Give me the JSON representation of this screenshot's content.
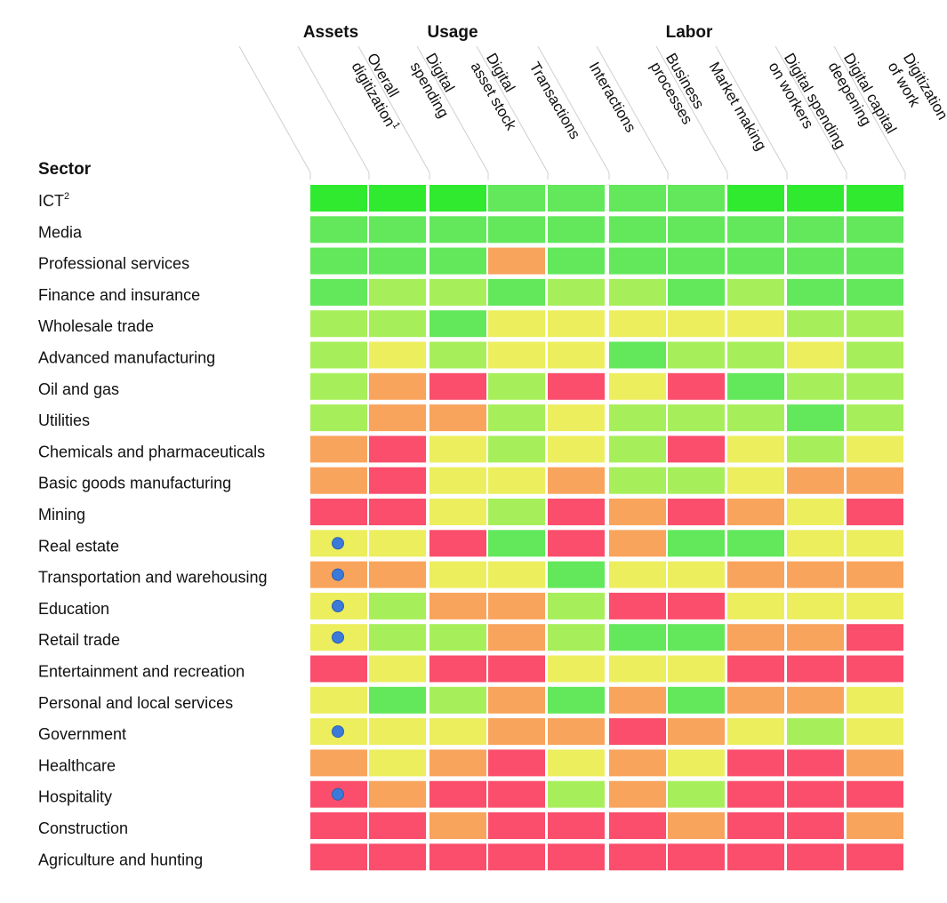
{
  "colors": {
    "dark_green": "#2fea2f",
    "green": "#62e85a",
    "light_green": "#a7ef5a",
    "yellow": "#ecee5e",
    "orange": "#f9a45c",
    "red": "#fa4e6c",
    "dot": "#3b7ad9",
    "separator": "#cfcfcf"
  },
  "chart_data": {
    "type": "heatmap",
    "row_header": "Sector",
    "groups": [
      {
        "label": "Assets",
        "columns": [
          0,
          1
        ]
      },
      {
        "label": "Usage",
        "columns": [
          2,
          3,
          4,
          5,
          6
        ]
      },
      {
        "label": "Labor",
        "columns": [
          7,
          8,
          9
        ]
      }
    ],
    "columns": [
      {
        "lines": [
          "Overall",
          "digitization"
        ],
        "sup": "1"
      },
      {
        "lines": [
          "Digital",
          "spending"
        ],
        "sup": ""
      },
      {
        "lines": [
          "Digital",
          "asset stock"
        ],
        "sup": ""
      },
      {
        "lines": [
          "Transactions"
        ],
        "sup": ""
      },
      {
        "lines": [
          "Interactions"
        ],
        "sup": ""
      },
      {
        "lines": [
          "Business",
          "processes"
        ],
        "sup": ""
      },
      {
        "lines": [
          "Market making"
        ],
        "sup": ""
      },
      {
        "lines": [
          "Digital spending",
          "on workers"
        ],
        "sup": ""
      },
      {
        "lines": [
          "Digital capital",
          "deepening"
        ],
        "sup": ""
      },
      {
        "lines": [
          "Digitization",
          "of work"
        ],
        "sup": ""
      }
    ],
    "rows": [
      {
        "label": "ICT",
        "sup": "2",
        "dot": false,
        "cells": [
          "dark_green",
          "dark_green",
          "dark_green",
          "green",
          "green",
          "green",
          "green",
          "dark_green",
          "dark_green",
          "dark_green"
        ]
      },
      {
        "label": "Media",
        "sup": "",
        "dot": false,
        "cells": [
          "green",
          "green",
          "green",
          "green",
          "green",
          "green",
          "green",
          "green",
          "green",
          "green"
        ]
      },
      {
        "label": "Professional services",
        "sup": "",
        "dot": false,
        "cells": [
          "green",
          "green",
          "green",
          "orange",
          "green",
          "green",
          "green",
          "green",
          "green",
          "green"
        ]
      },
      {
        "label": "Finance and insurance",
        "sup": "",
        "dot": false,
        "cells": [
          "green",
          "light_green",
          "light_green",
          "green",
          "light_green",
          "light_green",
          "green",
          "light_green",
          "green",
          "green"
        ]
      },
      {
        "label": "Wholesale trade",
        "sup": "",
        "dot": false,
        "cells": [
          "light_green",
          "light_green",
          "green",
          "yellow",
          "yellow",
          "yellow",
          "yellow",
          "yellow",
          "light_green",
          "light_green"
        ]
      },
      {
        "label": "Advanced manufacturing",
        "sup": "",
        "dot": false,
        "cells": [
          "light_green",
          "yellow",
          "light_green",
          "yellow",
          "yellow",
          "green",
          "light_green",
          "light_green",
          "yellow",
          "light_green"
        ]
      },
      {
        "label": "Oil and gas",
        "sup": "",
        "dot": false,
        "cells": [
          "light_green",
          "orange",
          "red",
          "light_green",
          "red",
          "yellow",
          "red",
          "green",
          "light_green",
          "light_green"
        ]
      },
      {
        "label": "Utilities",
        "sup": "",
        "dot": false,
        "cells": [
          "light_green",
          "orange",
          "orange",
          "light_green",
          "yellow",
          "light_green",
          "light_green",
          "light_green",
          "green",
          "light_green"
        ]
      },
      {
        "label": "Chemicals and pharmaceuticals",
        "sup": "",
        "dot": false,
        "cells": [
          "orange",
          "red",
          "yellow",
          "light_green",
          "yellow",
          "light_green",
          "red",
          "yellow",
          "light_green",
          "yellow"
        ]
      },
      {
        "label": "Basic goods manufacturing",
        "sup": "",
        "dot": false,
        "cells": [
          "orange",
          "red",
          "yellow",
          "yellow",
          "orange",
          "light_green",
          "light_green",
          "yellow",
          "orange",
          "orange"
        ]
      },
      {
        "label": "Mining",
        "sup": "",
        "dot": false,
        "cells": [
          "red",
          "red",
          "yellow",
          "light_green",
          "red",
          "orange",
          "red",
          "orange",
          "yellow",
          "red"
        ]
      },
      {
        "label": "Real estate",
        "sup": "",
        "dot": true,
        "cells": [
          "yellow",
          "yellow",
          "red",
          "green",
          "red",
          "orange",
          "green",
          "green",
          "yellow",
          "yellow"
        ]
      },
      {
        "label": "Transportation and warehousing",
        "sup": "",
        "dot": true,
        "cells": [
          "orange",
          "orange",
          "yellow",
          "yellow",
          "green",
          "yellow",
          "yellow",
          "orange",
          "orange",
          "orange"
        ]
      },
      {
        "label": "Education",
        "sup": "",
        "dot": true,
        "cells": [
          "yellow",
          "light_green",
          "orange",
          "orange",
          "light_green",
          "red",
          "red",
          "yellow",
          "yellow",
          "yellow"
        ]
      },
      {
        "label": "Retail trade",
        "sup": "",
        "dot": true,
        "cells": [
          "yellow",
          "light_green",
          "light_green",
          "orange",
          "light_green",
          "green",
          "green",
          "orange",
          "orange",
          "red"
        ]
      },
      {
        "label": "Entertainment and recreation",
        "sup": "",
        "dot": false,
        "cells": [
          "red",
          "yellow",
          "red",
          "red",
          "yellow",
          "yellow",
          "yellow",
          "red",
          "red",
          "red"
        ]
      },
      {
        "label": "Personal and local services",
        "sup": "",
        "dot": false,
        "cells": [
          "yellow",
          "green",
          "light_green",
          "orange",
          "green",
          "orange",
          "green",
          "orange",
          "orange",
          "yellow"
        ]
      },
      {
        "label": "Government",
        "sup": "",
        "dot": true,
        "cells": [
          "yellow",
          "yellow",
          "yellow",
          "orange",
          "orange",
          "red",
          "orange",
          "yellow",
          "light_green",
          "yellow"
        ]
      },
      {
        "label": "Healthcare",
        "sup": "",
        "dot": false,
        "cells": [
          "orange",
          "yellow",
          "orange",
          "red",
          "yellow",
          "orange",
          "yellow",
          "red",
          "red",
          "orange"
        ]
      },
      {
        "label": "Hospitality",
        "sup": "",
        "dot": true,
        "cells": [
          "red",
          "orange",
          "red",
          "red",
          "light_green",
          "orange",
          "light_green",
          "red",
          "red",
          "red"
        ]
      },
      {
        "label": "Construction",
        "sup": "",
        "dot": false,
        "cells": [
          "red",
          "red",
          "orange",
          "red",
          "red",
          "red",
          "orange",
          "red",
          "red",
          "orange"
        ]
      },
      {
        "label": "Agriculture and hunting",
        "sup": "",
        "dot": false,
        "cells": [
          "red",
          "red",
          "red",
          "red",
          "red",
          "red",
          "red",
          "red",
          "red",
          "red"
        ]
      }
    ]
  }
}
